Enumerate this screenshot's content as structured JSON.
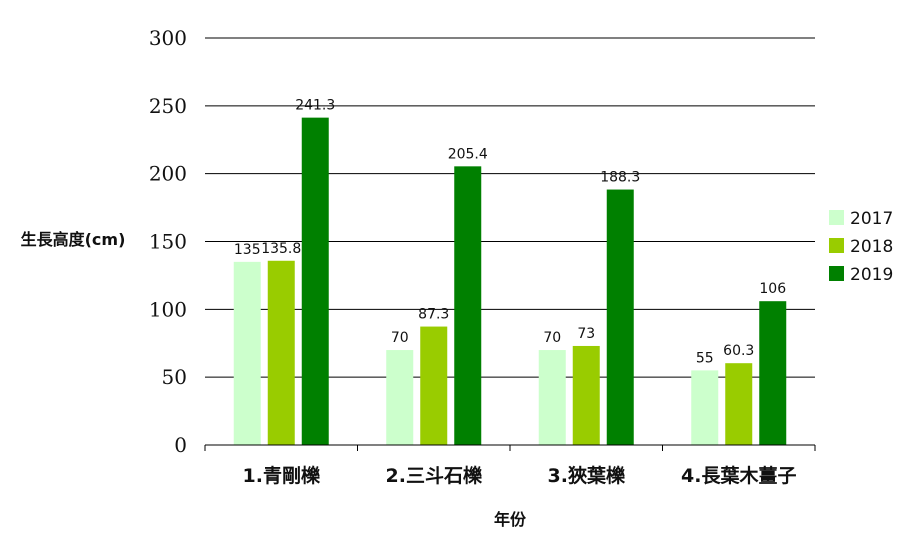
{
  "chart_data": {
    "type": "bar",
    "title": "",
    "xlabel": "年份",
    "ylabel": "生長高度(cm)",
    "ylim": [
      0,
      300
    ],
    "yticks": [
      0,
      50,
      100,
      150,
      200,
      250,
      300
    ],
    "grid": true,
    "legend_position": "right",
    "categories": [
      "1.青剛櫟",
      "2.三斗石櫟",
      "3.狹葉櫟",
      "4.長葉木薑子"
    ],
    "series": [
      {
        "name": "2017",
        "color": "#ccffcc",
        "values": [
          135,
          70,
          70,
          55
        ],
        "labels": [
          "135",
          "70",
          "70",
          "55"
        ]
      },
      {
        "name": "2018",
        "color": "#99cc00",
        "values": [
          135.8,
          87.3,
          73,
          60.3
        ],
        "labels": [
          "135.8",
          "87.3",
          "73",
          "60.3"
        ]
      },
      {
        "name": "2019",
        "color": "#008000",
        "values": [
          241.3,
          205.4,
          188.3,
          106
        ],
        "labels": [
          "241.3",
          "205.4",
          "188.3",
          "106"
        ]
      }
    ]
  }
}
